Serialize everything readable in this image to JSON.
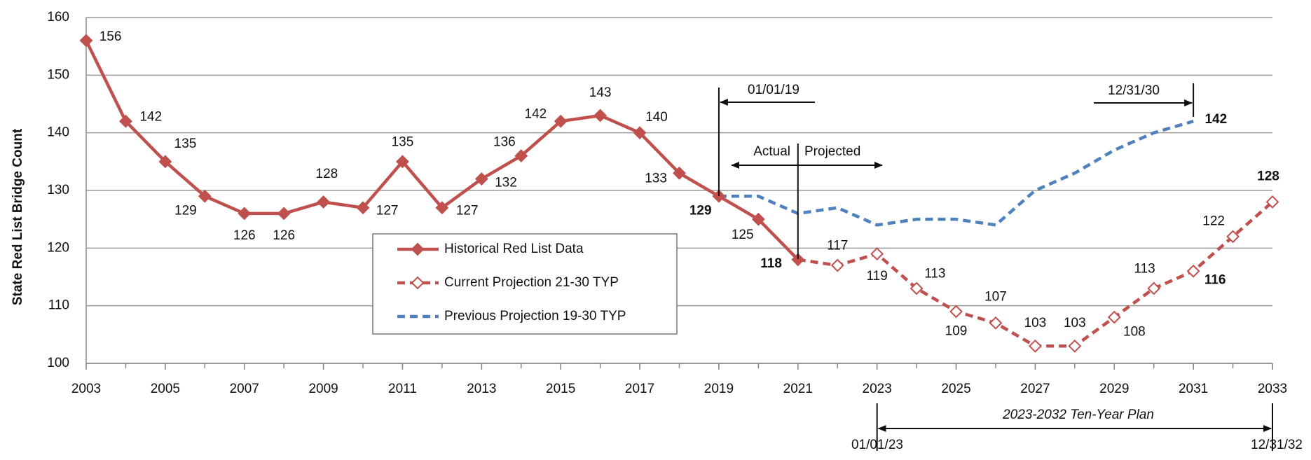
{
  "chart_data": {
    "type": "line",
    "y_label": "State Red List Bridge Count",
    "x": [
      2003,
      2004,
      2005,
      2006,
      2007,
      2008,
      2009,
      2010,
      2011,
      2012,
      2013,
      2014,
      2015,
      2016,
      2017,
      2018,
      2019,
      2020,
      2021,
      2022,
      2023,
      2024,
      2025,
      2026,
      2027,
      2028,
      2029,
      2030,
      2031,
      2032,
      2033
    ],
    "series": [
      {
        "name": "Historical Red List Data",
        "color": "#c0504d",
        "style": "solid",
        "marker": "filled-diamond",
        "values": [
          156,
          142,
          135,
          129,
          126,
          126,
          128,
          127,
          135,
          127,
          132,
          136,
          142,
          143,
          140,
          133,
          129,
          125,
          118,
          null,
          null,
          null,
          null,
          null,
          null,
          null,
          null,
          null,
          null,
          null,
          null
        ]
      },
      {
        "name": "Current Projection 21-30 TYP",
        "color": "#c0504d",
        "style": "dashed",
        "marker": "hollow-diamond",
        "values": [
          null,
          null,
          null,
          null,
          null,
          null,
          null,
          null,
          null,
          null,
          null,
          null,
          null,
          null,
          null,
          null,
          null,
          null,
          118,
          117,
          119,
          113,
          109,
          107,
          103,
          103,
          108,
          113,
          116,
          122,
          128
        ]
      },
      {
        "name": "Previous Projection 19-30 TYP",
        "color": "#4f81bd",
        "style": "dashed",
        "marker": "none",
        "values": [
          null,
          null,
          null,
          null,
          null,
          null,
          null,
          null,
          null,
          null,
          null,
          null,
          null,
          null,
          null,
          null,
          129,
          129,
          126,
          127,
          124,
          125,
          125,
          124,
          130,
          133,
          137,
          140,
          142,
          null,
          null
        ]
      }
    ],
    "xlim": [
      2003,
      2033
    ],
    "xticks": [
      2003,
      2005,
      2007,
      2009,
      2011,
      2013,
      2015,
      2017,
      2019,
      2021,
      2023,
      2025,
      2027,
      2029,
      2031,
      2033
    ],
    "ylim": [
      100,
      160
    ],
    "yticks": [
      100,
      110,
      120,
      130,
      140,
      150,
      160
    ],
    "grid": true,
    "legend": "center",
    "annotations": [
      "01/01/19",
      "Actual",
      "Projected",
      "12/31/30",
      "2023-2032 Ten-Year Plan",
      "01/01/23",
      "12/31/32"
    ]
  }
}
